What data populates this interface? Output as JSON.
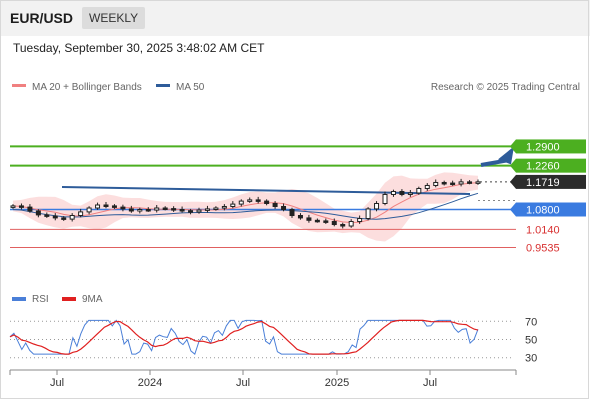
{
  "header": {
    "symbol": "EUR/USD",
    "period": "WEEKLY",
    "timestamp": "Tuesday, September 30, 2025 3:48:02 AM CET"
  },
  "colors": {
    "bollinger": "#f08080",
    "ma50": "#2e5c9a",
    "resistance": "#4caf20",
    "support": "#e06060",
    "pivot": "#3a7be0",
    "current": "#2b2b2b",
    "trend_arrow": "#2e5c9a",
    "rsi": "#4a7fd8",
    "rsi_ma": "#e02020"
  },
  "chart_data": [
    {
      "type": "candlestick",
      "legend": [
        "MA 20 + Bollinger Bands",
        "MA 50"
      ],
      "x_ticks": [
        "Jul",
        "2024",
        "Jul",
        "2025",
        "Jul"
      ],
      "levels": [
        {
          "value": "1.2900",
          "kind": "resistance"
        },
        {
          "value": "1.2260",
          "kind": "resistance"
        },
        {
          "value": "1.1719",
          "kind": "current"
        },
        {
          "value": "1.0800",
          "kind": "pivot"
        },
        {
          "value": "1.0140",
          "kind": "support"
        },
        {
          "value": "0.9535",
          "kind": "support"
        }
      ],
      "price_series_approx": [
        1.092,
        1.088,
        1.075,
        1.062,
        1.058,
        1.052,
        1.048,
        1.06,
        1.072,
        1.085,
        1.095,
        1.092,
        1.088,
        1.082,
        1.075,
        1.08,
        1.078,
        1.085,
        1.083,
        1.08,
        1.076,
        1.072,
        1.078,
        1.082,
        1.085,
        1.09,
        1.098,
        1.108,
        1.112,
        1.108,
        1.1,
        1.09,
        1.08,
        1.06,
        1.052,
        1.044,
        1.042,
        1.04,
        1.03,
        1.025,
        1.04,
        1.05,
        1.082,
        1.1,
        1.13,
        1.14,
        1.13,
        1.135,
        1.15,
        1.16,
        1.17,
        1.168,
        1.165,
        1.172,
        1.17,
        1.172
      ],
      "trend_arrow_target": "1.2900"
    },
    {
      "type": "line",
      "legend": [
        "RSI",
        "9MA"
      ],
      "y_ticks": [
        "70",
        "50",
        "30"
      ],
      "ylim": [
        20,
        80
      ]
    }
  ]
}
